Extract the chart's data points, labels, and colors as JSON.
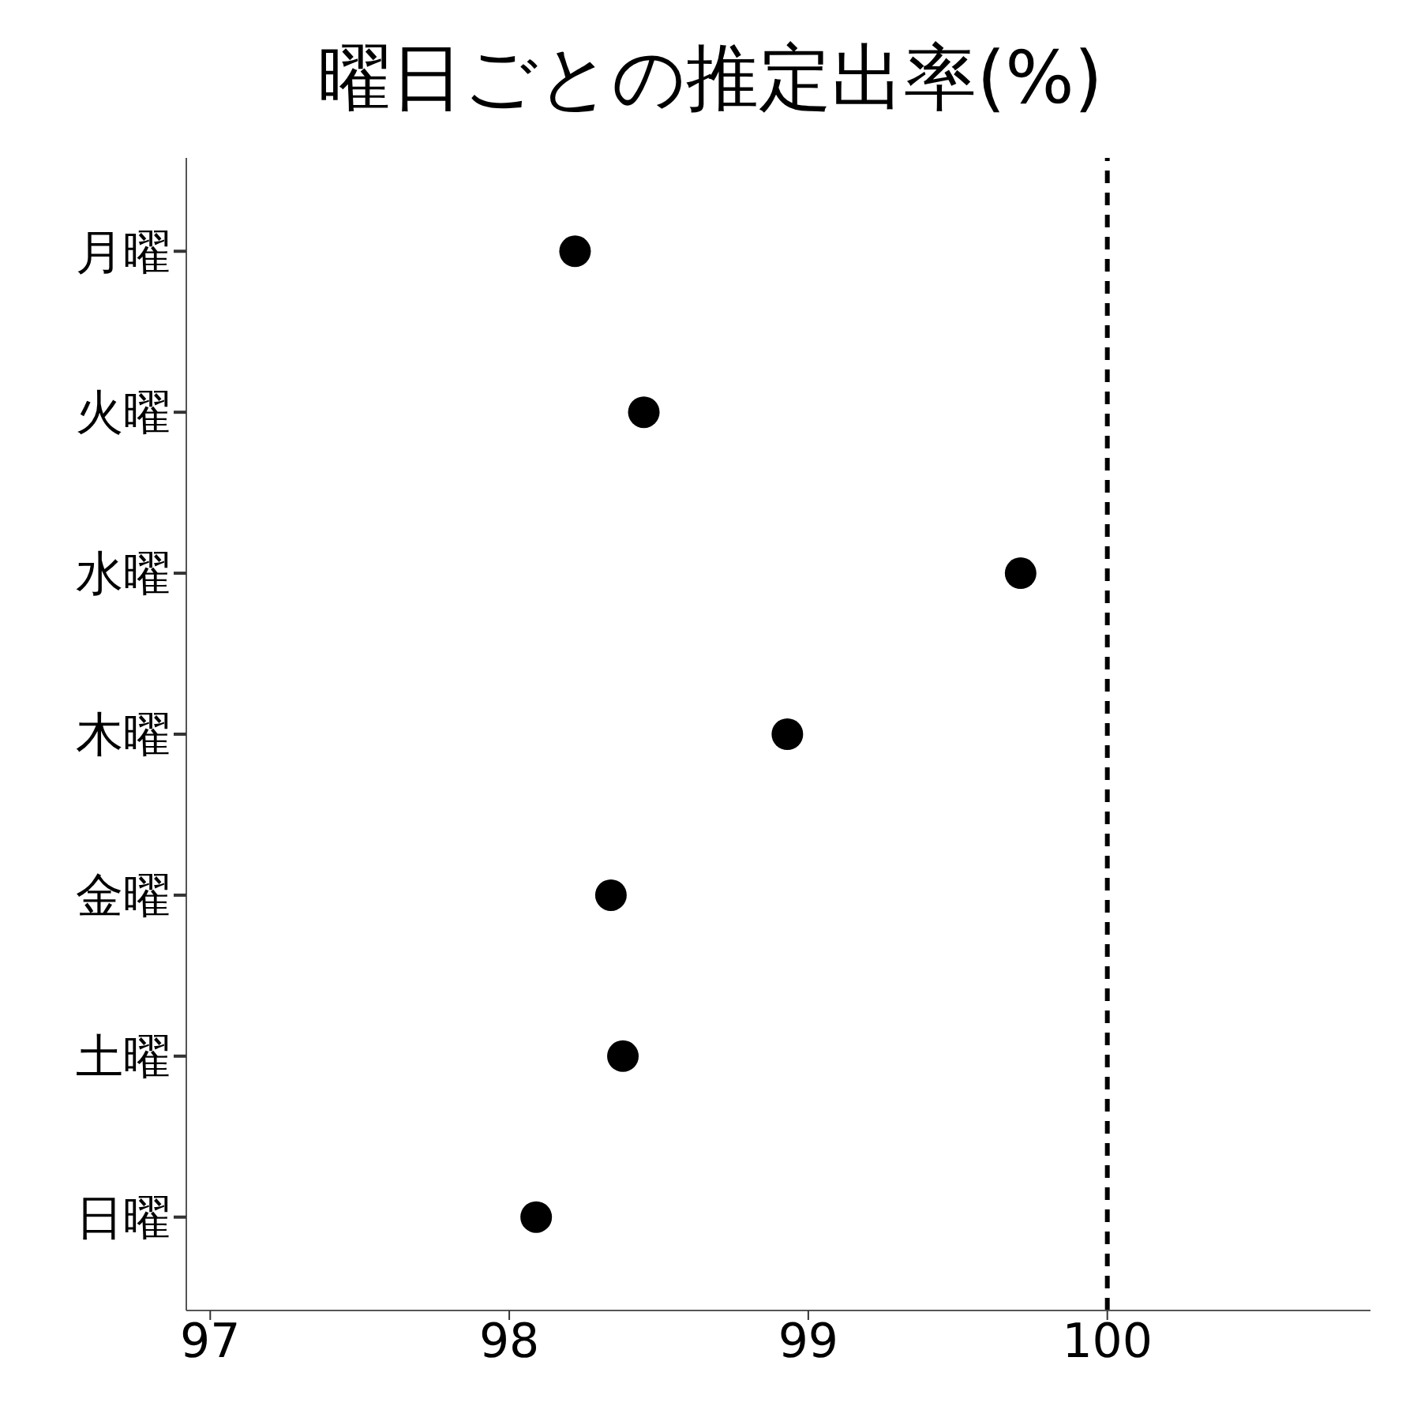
{
  "chart_data": {
    "type": "scatter",
    "title": "曜日ごとの推定出率(%)",
    "orientation": "horizontal",
    "categories": [
      "月曜",
      "火曜",
      "水曜",
      "木曜",
      "金曜",
      "土曜",
      "日曜"
    ],
    "series": [
      {
        "color": "#000000",
        "values": [
          98.22,
          98.45,
          99.71,
          98.93,
          98.34,
          98.38,
          98.09
        ]
      }
    ],
    "xlim": [
      96.92,
      100.88
    ],
    "xticks": [
      97,
      98,
      99,
      100
    ],
    "ref_lines": [
      {
        "axis": "x",
        "value": 100,
        "color": "#000000",
        "line_style": "dashed"
      }
    ],
    "marker": "circle",
    "grid": false
  }
}
